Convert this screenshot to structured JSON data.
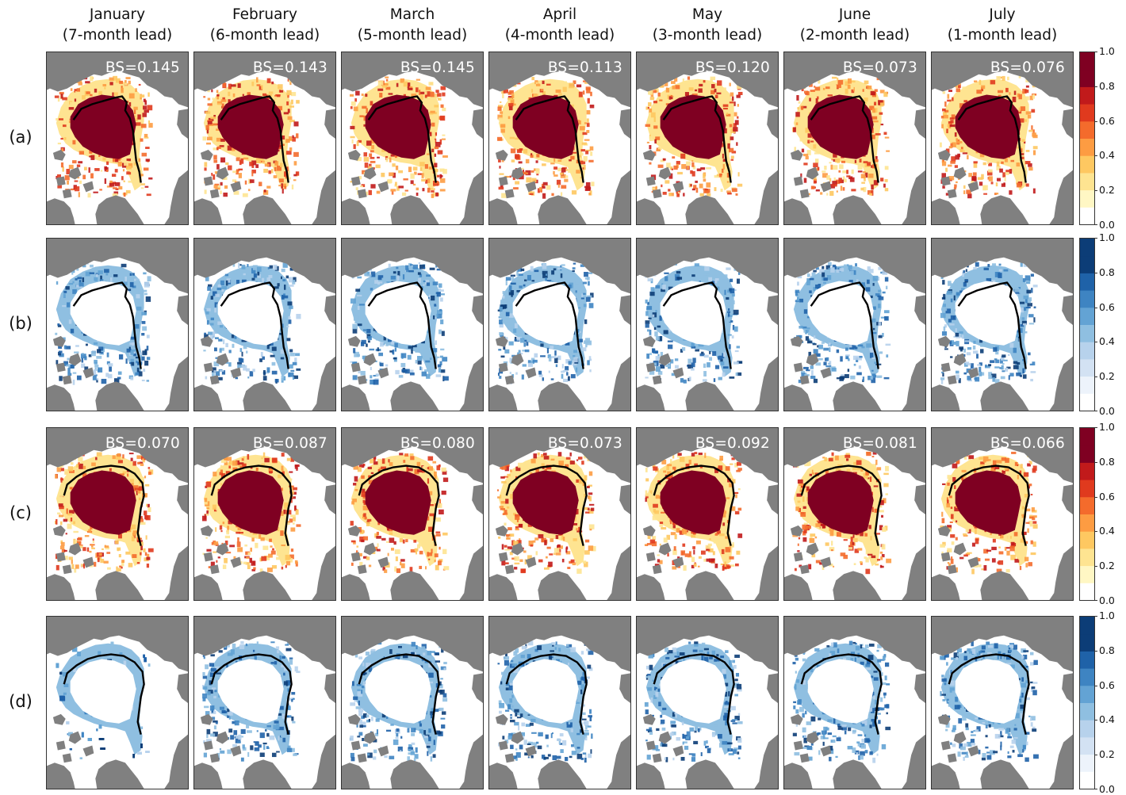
{
  "columns": [
    {
      "month": "January",
      "lead": "(7-month lead)"
    },
    {
      "month": "February",
      "lead": "(6-month lead)"
    },
    {
      "month": "March",
      "lead": "(5-month lead)"
    },
    {
      "month": "April",
      "lead": "(4-month lead)"
    },
    {
      "month": "May",
      "lead": "(3-month lead)"
    },
    {
      "month": "June",
      "lead": "(2-month lead)"
    },
    {
      "month": "July",
      "lead": "(1-month lead)"
    }
  ],
  "rows": [
    {
      "label": "(a)",
      "palette": "red",
      "bs": [
        "BS=0.145",
        "BS=0.143",
        "BS=0.145",
        "BS=0.113",
        "BS=0.120",
        "BS=0.073",
        "BS=0.076"
      ]
    },
    {
      "label": "(b)",
      "palette": "blue",
      "bs": []
    },
    {
      "label": "(c)",
      "palette": "red",
      "bs": [
        "BS=0.070",
        "BS=0.087",
        "BS=0.080",
        "BS=0.073",
        "BS=0.092",
        "BS=0.081",
        "BS=0.066"
      ]
    },
    {
      "label": "(d)",
      "palette": "blue",
      "bs": []
    }
  ],
  "colorbar_ticks": [
    "0.0",
    "0.2",
    "0.4",
    "0.6",
    "0.8",
    "1.0"
  ],
  "colors": {
    "land": "#808080",
    "ocean": "#ffffff",
    "contour": "#000000",
    "red_scale": [
      "#fff7c4",
      "#fee491",
      "#fec861",
      "#fd9c42",
      "#f46b2c",
      "#e03a1e",
      "#c11a1b",
      "#7f0022"
    ],
    "blue_scale": [
      "#edf3fb",
      "#d3e2f3",
      "#b7d2ec",
      "#8fbfe1",
      "#63a3d4",
      "#3e84c2",
      "#1f62a8",
      "#0c3d77"
    ]
  }
}
